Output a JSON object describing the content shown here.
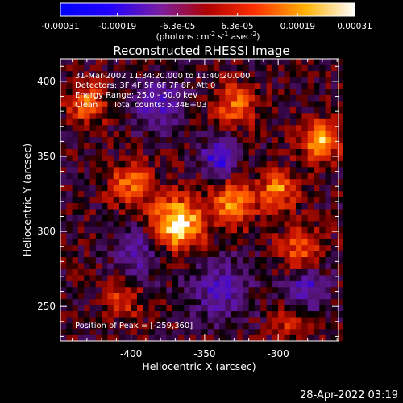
{
  "chart_data": {
    "type": "heatmap",
    "title": "Reconstructed RHESSI Image",
    "xlabel": "Heliocentric X (arcsec)",
    "ylabel": "Heliocentric Y (arcsec)",
    "xlim": [
      -448,
      -259
    ],
    "ylim": [
      227,
      415
    ],
    "x_ticks": [
      -400,
      -350,
      -300
    ],
    "x_tick_labels": [
      "-400",
      "-350",
      "-300"
    ],
    "y_ticks": [
      250,
      300,
      350,
      400
    ],
    "y_tick_labels": [
      "250",
      "300",
      "350",
      "400"
    ],
    "colorbar": {
      "range": [
        -0.00031,
        0.00031
      ],
      "ticks": [
        -0.00031,
        -0.00019,
        -6.3e-05,
        6.3e-05,
        0.00019,
        0.00031
      ],
      "tick_labels": [
        "-0.00031",
        "-0.00019",
        "-6.3e-05",
        "6.3e-05",
        "0.00019",
        "0.00031"
      ],
      "unit_label": {
        "parts": [
          "(photons cm",
          "-2",
          " s",
          "-1",
          " asec",
          "-2",
          ")"
        ]
      }
    },
    "annotations": [
      "31-Mar-2002 11:34:20.000 to 11:40:20.000",
      "Detectors: 3F 4F 5F 6F 7F 8F, Att 0",
      "Energy Range: 25.0 - 50.0 keV",
      "Clean      Total counts: 5.34E+03"
    ],
    "peak_label": "Position of Peak = [-259,360]",
    "peak": [
      -259,
      360
    ],
    "sources": [
      {
        "x": -368,
        "y": 305,
        "sigma": 12,
        "amp": 0.00031
      },
      {
        "x": -330,
        "y": 318,
        "sigma": 10,
        "amp": 0.00021
      },
      {
        "x": -300,
        "y": 328,
        "sigma": 9,
        "amp": 0.00019
      },
      {
        "x": -272,
        "y": 360,
        "sigma": 9,
        "amp": 0.00024
      },
      {
        "x": -430,
        "y": 385,
        "sigma": 9,
        "amp": 0.00018
      },
      {
        "x": -400,
        "y": 332,
        "sigma": 10,
        "amp": 0.00017
      },
      {
        "x": -330,
        "y": 385,
        "sigma": 10,
        "amp": 0.00016
      },
      {
        "x": -285,
        "y": 288,
        "sigma": 10,
        "amp": 0.00016
      },
      {
        "x": -405,
        "y": 255,
        "sigma": 9,
        "amp": 0.00012
      },
      {
        "x": -290,
        "y": 240,
        "sigma": 8,
        "amp": 0.00012
      },
      {
        "x": -340,
        "y": 350,
        "sigma": 8,
        "amp": -0.00022
      },
      {
        "x": -382,
        "y": 385,
        "sigma": 12,
        "amp": -0.00015
      },
      {
        "x": -395,
        "y": 285,
        "sigma": 12,
        "amp": -0.00013
      },
      {
        "x": -340,
        "y": 262,
        "sigma": 14,
        "amp": -0.00014
      },
      {
        "x": -280,
        "y": 262,
        "sigma": 10,
        "amp": -0.00016
      }
    ]
  },
  "footer": {
    "timestamp": "28-Apr-2022 03:19"
  }
}
